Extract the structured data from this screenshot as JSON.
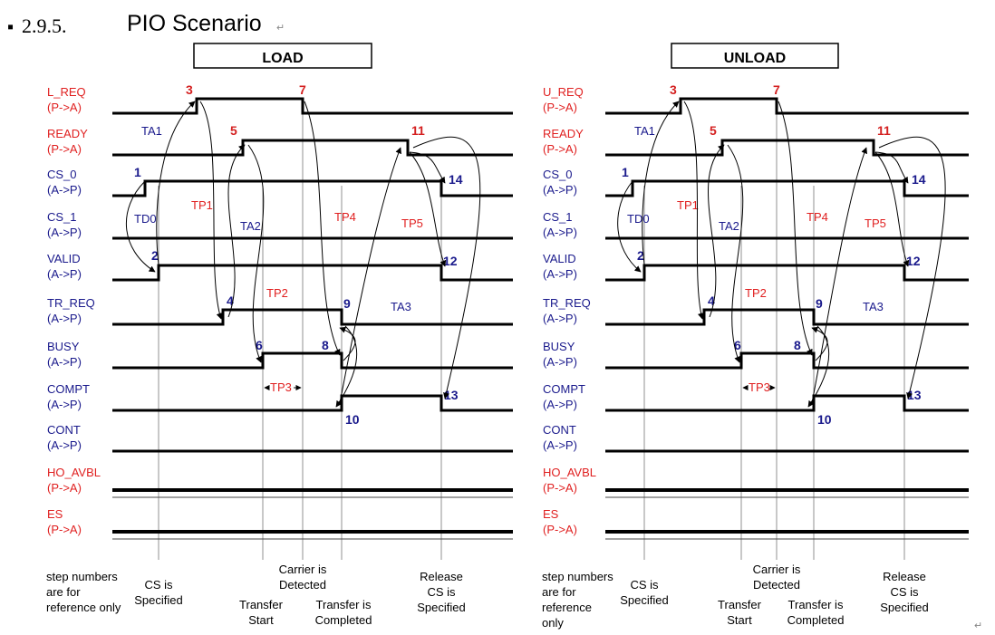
{
  "heading": {
    "bullet": "▪",
    "number": "2.9.5.",
    "title": "PIO Scenario",
    "mark": "↵"
  },
  "end_mark": "↵",
  "colors": {
    "active": "#e02020",
    "passive": "#1a1a8c",
    "step_red": "#d42020",
    "step_blue": "#1a1a8c",
    "line": "#000000"
  },
  "panels": [
    {
      "id": "load",
      "label": "LOAD",
      "signals": [
        {
          "name": "L_REQ",
          "dir": "(P->A)",
          "side": "passive"
        },
        {
          "name": "READY",
          "dir": "(P->A)",
          "side": "passive"
        },
        {
          "name": "CS_0",
          "dir": "(A->P)",
          "side": "active"
        },
        {
          "name": "CS_1",
          "dir": "(A->P)",
          "side": "active"
        },
        {
          "name": "VALID",
          "dir": "(A->P)",
          "side": "active"
        },
        {
          "name": "TR_REQ",
          "dir": "(A->P)",
          "side": "active"
        },
        {
          "name": "BUSY",
          "dir": "(A->P)",
          "side": "active"
        },
        {
          "name": "COMPT",
          "dir": "(A->P)",
          "side": "active"
        },
        {
          "name": "CONT",
          "dir": "(A->P)",
          "side": "active"
        },
        {
          "name": "HO_AVBL",
          "dir": "(P->A)",
          "side": "passive"
        },
        {
          "name": "ES",
          "dir": "(P->A)",
          "side": "passive"
        }
      ],
      "steps": [
        "1",
        "2",
        "3",
        "4",
        "5",
        "6",
        "7",
        "8",
        "9",
        "10",
        "11",
        "12",
        "13",
        "14"
      ],
      "timings": [
        "TA1",
        "TD0",
        "TP1",
        "TA2",
        "TP2",
        "TP3",
        "TP4",
        "TA3",
        "TP5"
      ],
      "notes": {
        "reference": [
          "step numbers",
          "are for",
          "reference only"
        ],
        "cs_specified": [
          "CS is",
          "Specified"
        ],
        "carrier": [
          "Carrier is",
          "Detected"
        ],
        "transfer_start": [
          "Transfer",
          "Start"
        ],
        "transfer_completed": [
          "Transfer is",
          "Completed"
        ],
        "release": [
          "Release",
          "CS is",
          "Specified"
        ]
      }
    },
    {
      "id": "unload",
      "label": "UNLOAD",
      "signals": [
        {
          "name": "U_REQ",
          "dir": "(P->A)",
          "side": "passive"
        },
        {
          "name": "READY",
          "dir": "(P->A)",
          "side": "passive"
        },
        {
          "name": "CS_0",
          "dir": "(A->P)",
          "side": "active"
        },
        {
          "name": "CS_1",
          "dir": "(A->P)",
          "side": "active"
        },
        {
          "name": "VALID",
          "dir": "(A->P)",
          "side": "active"
        },
        {
          "name": "TR_REQ",
          "dir": "(A->P)",
          "side": "active"
        },
        {
          "name": "BUSY",
          "dir": "(A->P)",
          "side": "active"
        },
        {
          "name": "COMPT",
          "dir": "(A->P)",
          "side": "active"
        },
        {
          "name": "CONT",
          "dir": "(A->P)",
          "side": "active"
        },
        {
          "name": "HO_AVBL",
          "dir": "(P->A)",
          "side": "passive"
        },
        {
          "name": "ES",
          "dir": "(P->A)",
          "side": "passive"
        }
      ],
      "steps": [
        "1",
        "2",
        "3",
        "4",
        "5",
        "6",
        "7",
        "8",
        "9",
        "10",
        "11",
        "12",
        "13",
        "14"
      ],
      "timings": [
        "TA1",
        "TD0",
        "TP1",
        "TA2",
        "TP2",
        "TP3",
        "TP4",
        "TA3",
        "TP5"
      ],
      "notes": {
        "reference": [
          "step numbers",
          "are for",
          "reference",
          "only"
        ],
        "cs_specified": [
          "CS is",
          "Specified"
        ],
        "carrier": [
          "Carrier is",
          "Detected"
        ],
        "transfer_start": [
          "Transfer",
          "Start"
        ],
        "transfer_completed": [
          "Transfer is",
          "Completed"
        ],
        "release": [
          "Release",
          "CS is",
          "Specified"
        ]
      }
    }
  ]
}
